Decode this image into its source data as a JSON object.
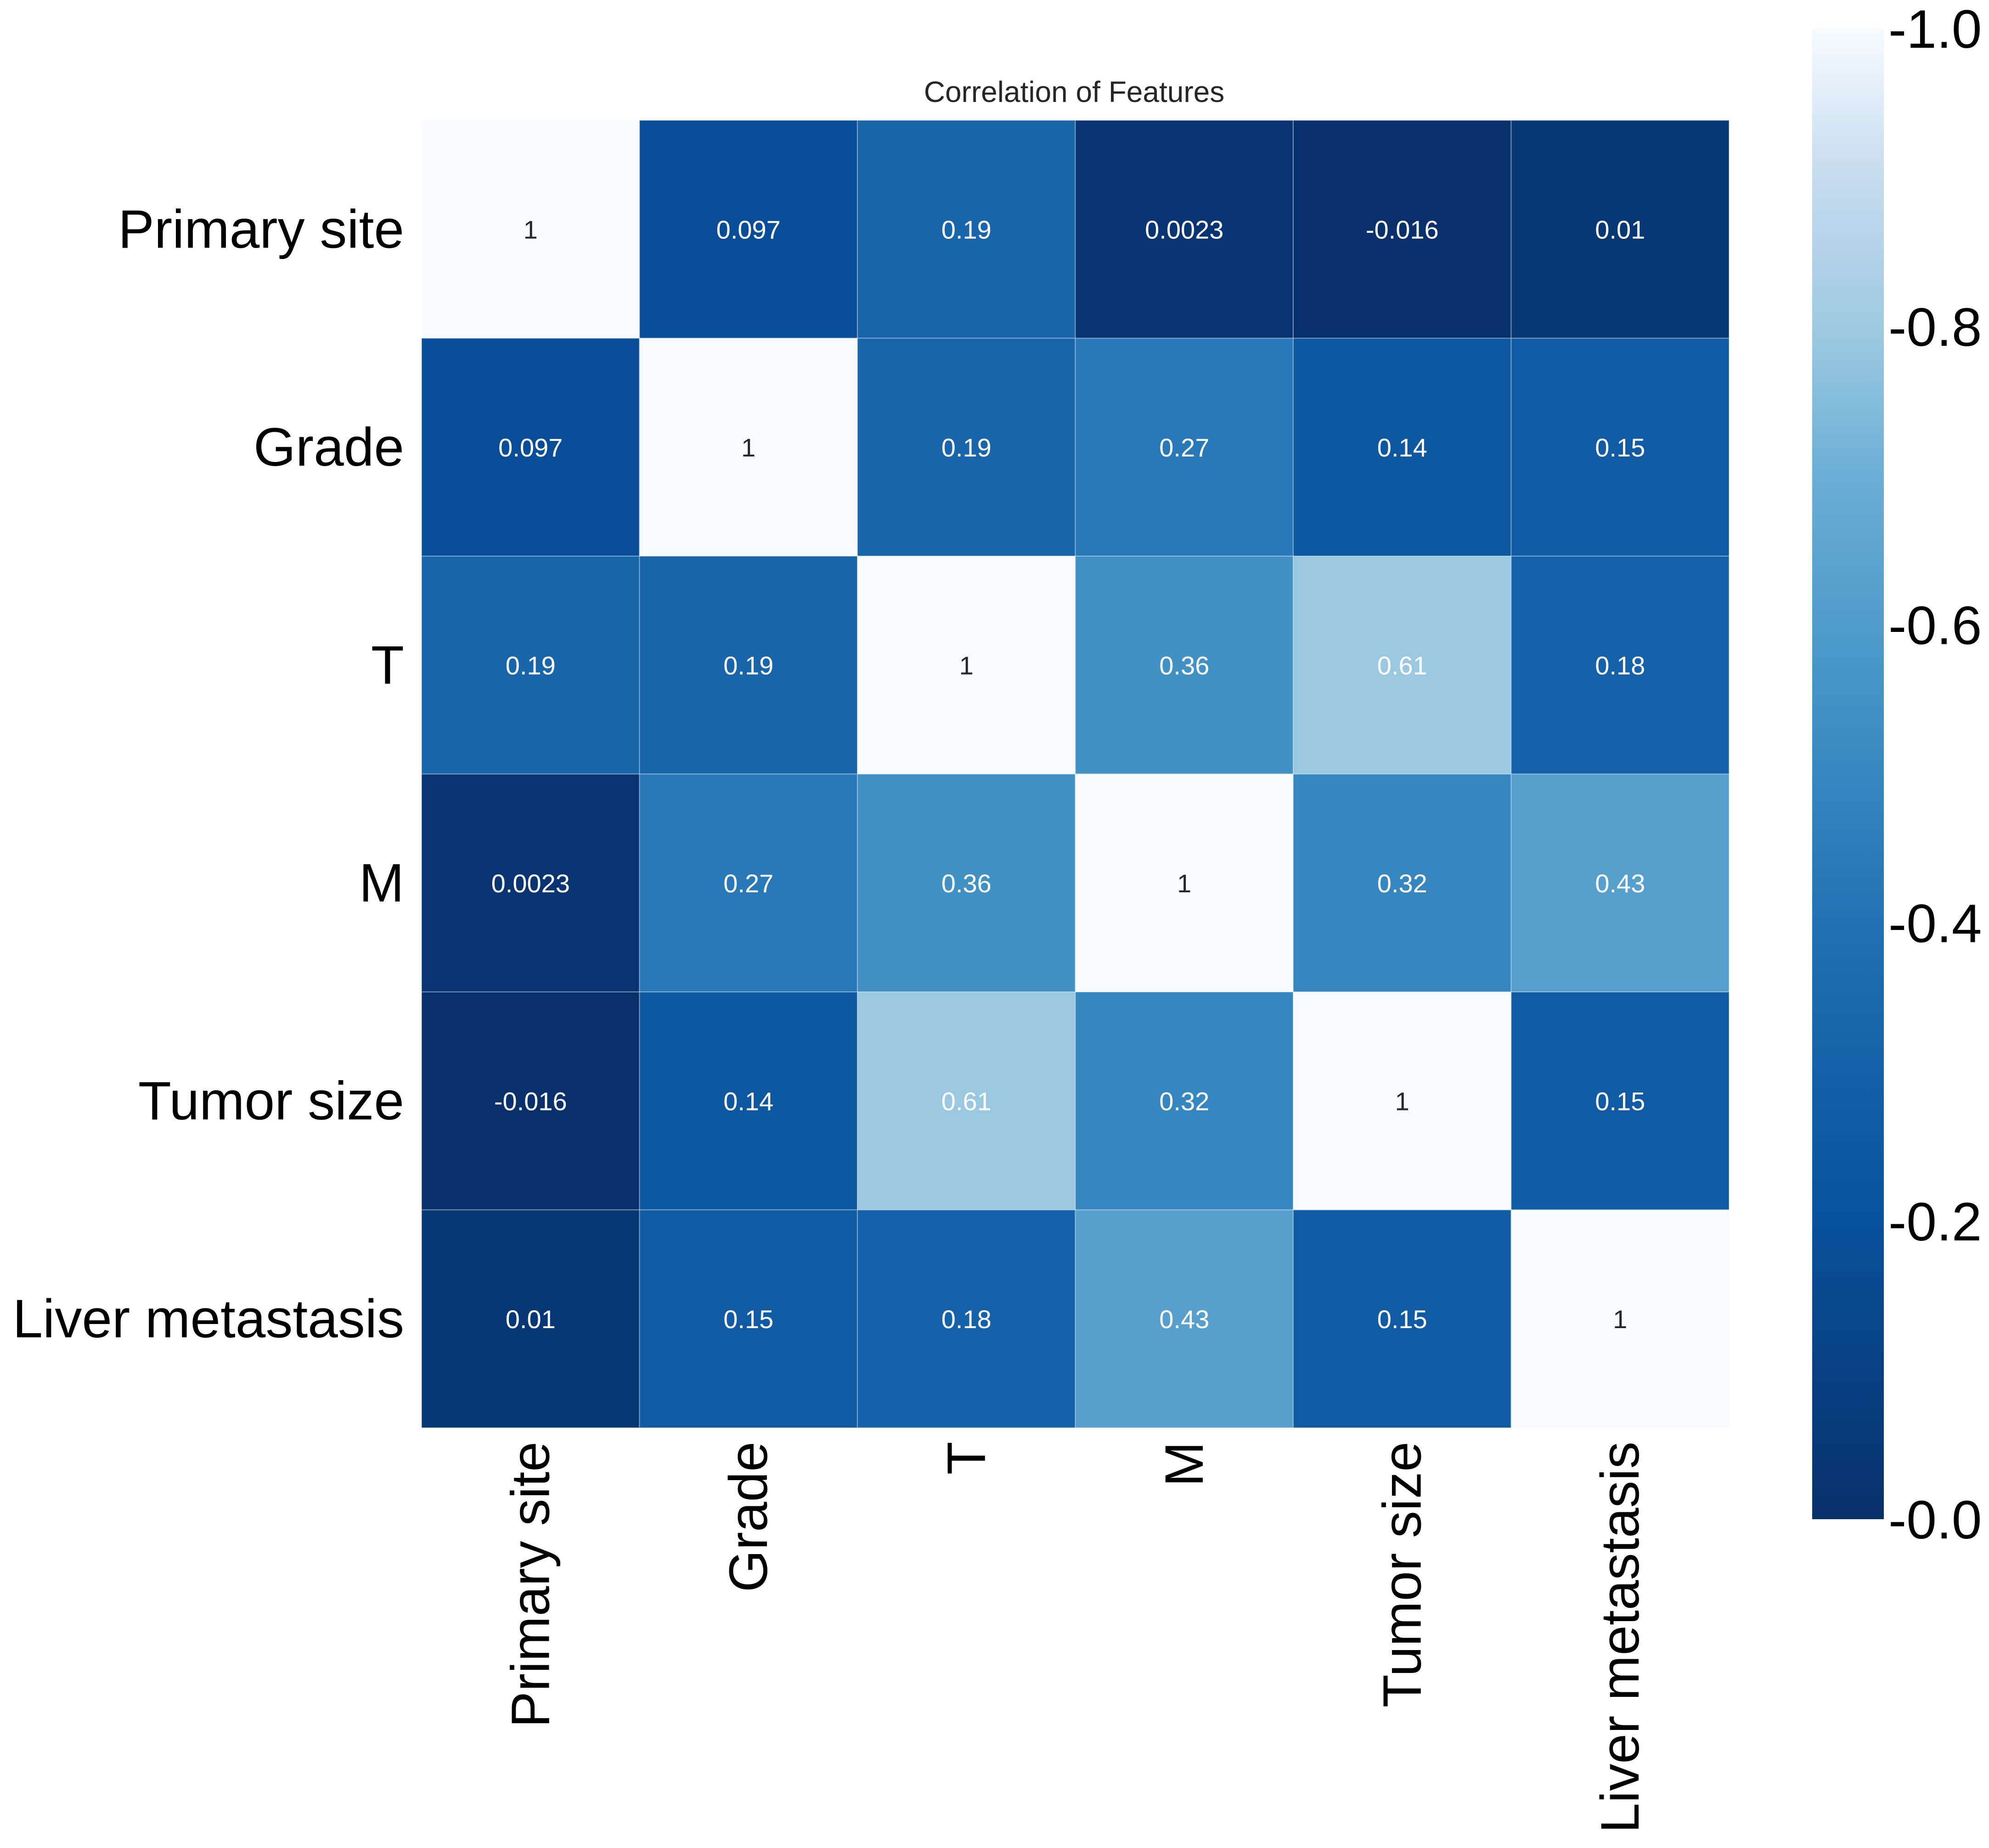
{
  "chart_data": {
    "type": "heatmap",
    "title": "Correlation of Features",
    "rows": [
      "Primary site",
      "Grade",
      "T",
      "M",
      "Tumor size",
      "Liver metastasis"
    ],
    "columns": [
      "Primary site",
      "Grade",
      "T",
      "M",
      "Tumor size",
      "Liver metastasis"
    ],
    "values": [
      [
        1,
        0.097,
        0.19,
        0.0023,
        -0.016,
        0.01
      ],
      [
        0.097,
        1,
        0.19,
        0.27,
        0.14,
        0.15
      ],
      [
        0.19,
        0.19,
        1,
        0.36,
        0.61,
        0.18
      ],
      [
        0.0023,
        0.27,
        0.36,
        1,
        0.32,
        0.43
      ],
      [
        -0.016,
        0.14,
        0.61,
        0.32,
        1,
        0.15
      ],
      [
        0.01,
        0.15,
        0.18,
        0.43,
        0.15,
        1
      ]
    ],
    "cell_labels": [
      [
        "1",
        "0.097",
        "0.19",
        "0.0023",
        "-0.016",
        "0.01"
      ],
      [
        "0.097",
        "1",
        "0.19",
        "0.27",
        "0.14",
        "0.15"
      ],
      [
        "0.19",
        "0.19",
        "1",
        "0.36",
        "0.61",
        "0.18"
      ],
      [
        "0.0023",
        "0.27",
        "0.36",
        "1",
        "0.32",
        "0.43"
      ],
      [
        "-0.016",
        "0.14",
        "0.61",
        "0.32",
        "1",
        "0.15"
      ],
      [
        "0.01",
        "0.15",
        "0.18",
        "0.43",
        "0.15",
        "1"
      ]
    ],
    "colormap": "Blues",
    "color_range": [
      -0.016,
      1
    ],
    "colorbar": {
      "ticks": [
        {
          "value": 1.0,
          "label": "-1.0"
        },
        {
          "value": 0.8,
          "label": "-0.8"
        },
        {
          "value": 0.6,
          "label": "-0.6"
        },
        {
          "value": 0.4,
          "label": "-0.4"
        },
        {
          "value": 0.2,
          "label": "-0.2"
        },
        {
          "value": 0.0,
          "label": "-0.0"
        }
      ]
    },
    "colors": {
      "low": "#08306b",
      "mid_dark": "#08519c",
      "mid": "#2171b5",
      "mid_light": "#4292c6",
      "light": "#9ecae1",
      "high": "#f7fbff",
      "text_dark": "#262626",
      "text_light": "#ffffff"
    }
  }
}
